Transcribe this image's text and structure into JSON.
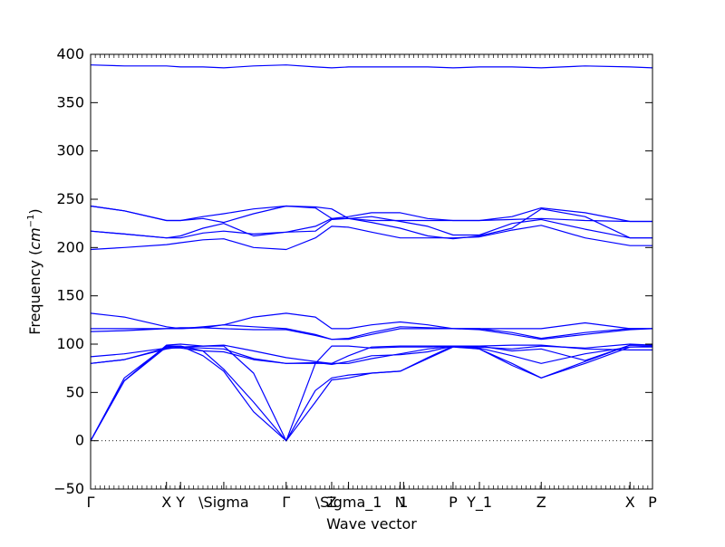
{
  "chart_data": {
    "type": "line",
    "title": "",
    "xlabel": "Wave vector",
    "ylabel": "Frequency ($cm^{-1}$)",
    "ylabel_parts": {
      "main": "Frequency (",
      "unit_base": "cm",
      "unit_exp": "−1",
      "close": ")"
    },
    "ylim": [
      -50,
      400
    ],
    "xlim": [
      0,
      1.0
    ],
    "yticks": [
      -50,
      0,
      50,
      100,
      150,
      200,
      250,
      300,
      350,
      400
    ],
    "ytick_labels": [
      "−50",
      "0",
      "50",
      "100",
      "150",
      "200",
      "250",
      "300",
      "350",
      "400"
    ],
    "high_symmetry_points": [
      {
        "label": "Γ",
        "x": 0.0
      },
      {
        "label": "X",
        "x": 0.135
      },
      {
        "label": "Y",
        "x": 0.16
      },
      {
        "label": "\\Sigma",
        "x": 0.237
      },
      {
        "label": "Γ",
        "x": 0.348
      },
      {
        "label": "Z",
        "x": 0.429
      },
      {
        "label": "\\Sigma_1",
        "x": 0.459
      },
      {
        "label": "N",
        "x": 0.551
      },
      {
        "label": "1",
        "x": 0.557
      },
      {
        "label": "P",
        "x": 0.645
      },
      {
        "label": "Y_1",
        "x": 0.692
      },
      {
        "label": "Z",
        "x": 0.802
      },
      {
        "label": "X",
        "x": 0.96
      },
      {
        "label": "P",
        "x": 1.0
      }
    ],
    "zero_line": true,
    "line_color": "#0000ff",
    "series": [
      {
        "x": [
          0,
          0.06,
          0.135,
          0.16,
          0.2,
          0.237,
          0.29,
          0.348,
          0.4,
          0.429,
          0.459,
          0.5,
          0.551,
          0.6,
          0.645,
          0.692,
          0.75,
          0.802,
          0.88,
          0.96,
          1.0
        ],
        "values": [
          389,
          388,
          388,
          387,
          387,
          386,
          388,
          389,
          387,
          386,
          387,
          387,
          387,
          387,
          386,
          387,
          387,
          386,
          388,
          387,
          386
        ]
      },
      {
        "x": [
          0,
          0.06,
          0.135,
          0.16,
          0.2,
          0.237,
          0.29,
          0.348,
          0.4,
          0.429,
          0.459,
          0.5,
          0.551,
          0.6,
          0.645,
          0.692,
          0.75,
          0.802,
          0.88,
          0.96,
          1.0
        ],
        "values": [
          243,
          238,
          228,
          228,
          232,
          235,
          240,
          243,
          242,
          240,
          230,
          228,
          228,
          228,
          228,
          228,
          229,
          230,
          228,
          227,
          227
        ]
      },
      {
        "x": [
          0,
          0.06,
          0.135,
          0.16,
          0.2,
          0.237,
          0.29,
          0.348,
          0.4,
          0.429,
          0.459,
          0.5,
          0.551,
          0.6,
          0.645,
          0.692,
          0.75,
          0.802,
          0.88,
          0.96,
          1.0
        ],
        "values": [
          243,
          238,
          228,
          228,
          230,
          226,
          235,
          243,
          241,
          230,
          232,
          236,
          236,
          230,
          228,
          228,
          232,
          241,
          236,
          227,
          227
        ]
      },
      {
        "x": [
          0,
          0.06,
          0.135,
          0.16,
          0.2,
          0.237,
          0.29,
          0.348,
          0.4,
          0.429,
          0.459,
          0.5,
          0.551,
          0.6,
          0.645,
          0.692,
          0.75,
          0.802,
          0.88,
          0.96,
          1.0
        ],
        "values": [
          217,
          214,
          210,
          210,
          215,
          217,
          214,
          216,
          222,
          230,
          230,
          232,
          227,
          222,
          213,
          213,
          225,
          229,
          219,
          210,
          210
        ]
      },
      {
        "x": [
          0,
          0.06,
          0.135,
          0.16,
          0.2,
          0.237,
          0.29,
          0.348,
          0.4,
          0.429,
          0.459,
          0.5,
          0.551,
          0.6,
          0.645,
          0.692,
          0.75,
          0.802,
          0.88,
          0.96,
          1.0
        ],
        "values": [
          217,
          214,
          210,
          212,
          220,
          225,
          212,
          216,
          217,
          229,
          230,
          226,
          220,
          212,
          209,
          212,
          220,
          240,
          232,
          210,
          210
        ]
      },
      {
        "x": [
          0,
          0.06,
          0.135,
          0.16,
          0.2,
          0.237,
          0.29,
          0.348,
          0.4,
          0.429,
          0.459,
          0.5,
          0.551,
          0.6,
          0.645,
          0.692,
          0.75,
          0.802,
          0.88,
          0.96,
          1.0
        ],
        "values": [
          198,
          200,
          203,
          205,
          208,
          209,
          200,
          198,
          210,
          222,
          221,
          216,
          210,
          210,
          210,
          211,
          218,
          223,
          210,
          202,
          202
        ]
      },
      {
        "x": [
          0,
          0.06,
          0.135,
          0.16,
          0.2,
          0.237,
          0.29,
          0.348,
          0.4,
          0.429,
          0.459,
          0.5,
          0.551,
          0.6,
          0.645,
          0.692,
          0.75,
          0.802,
          0.88,
          0.96,
          1.0
        ],
        "values": [
          132,
          128,
          118,
          116,
          117,
          120,
          128,
          132,
          128,
          116,
          116,
          120,
          123,
          120,
          116,
          116,
          116,
          116,
          122,
          116,
          116
        ]
      },
      {
        "x": [
          0,
          0.06,
          0.135,
          0.16,
          0.2,
          0.237,
          0.29,
          0.348,
          0.4,
          0.429,
          0.459,
          0.5,
          0.551,
          0.6,
          0.645,
          0.692,
          0.75,
          0.802,
          0.88,
          0.96,
          1.0
        ],
        "values": [
          116,
          116,
          116,
          116,
          118,
          120,
          118,
          116,
          110,
          105,
          106,
          112,
          118,
          117,
          116,
          116,
          112,
          106,
          112,
          116,
          116
        ]
      },
      {
        "x": [
          0,
          0.06,
          0.135,
          0.16,
          0.2,
          0.237,
          0.29,
          0.348,
          0.4,
          0.429,
          0.459,
          0.5,
          0.551,
          0.6,
          0.645,
          0.692,
          0.75,
          0.802,
          0.88,
          0.96,
          1.0
        ],
        "values": [
          113,
          114,
          116,
          117,
          117,
          116,
          115,
          115,
          109,
          105,
          105,
          110,
          116,
          116,
          116,
          115,
          110,
          105,
          110,
          115,
          116
        ]
      },
      {
        "x": [
          0,
          0.06,
          0.135,
          0.16,
          0.2,
          0.237,
          0.29,
          0.348,
          0.4,
          0.429,
          0.459,
          0.5,
          0.551,
          0.6,
          0.645,
          0.692,
          0.75,
          0.802,
          0.88,
          0.96,
          1.0
        ],
        "values": [
          87,
          90,
          96,
          97,
          98,
          99,
          93,
          86,
          82,
          80,
          88,
          97,
          98,
          98,
          98,
          98,
          99,
          99,
          95,
          94,
          94
        ]
      },
      {
        "x": [
          0,
          0.06,
          0.135,
          0.16,
          0.2,
          0.237,
          0.29,
          0.348,
          0.4,
          0.429,
          0.459,
          0.5,
          0.551,
          0.6,
          0.645,
          0.692,
          0.75,
          0.802,
          0.88,
          0.96,
          1.0
        ],
        "values": [
          80,
          84,
          95,
          97,
          96,
          95,
          85,
          80,
          81,
          79,
          82,
          88,
          89,
          92,
          98,
          98,
          93,
          95,
          83,
          99,
          99
        ]
      },
      {
        "x": [
          0,
          0.06,
          0.135,
          0.16,
          0.2,
          0.237,
          0.29,
          0.348,
          0.4,
          0.429,
          0.459,
          0.5,
          0.551,
          0.6,
          0.645,
          0.692,
          0.75,
          0.802,
          0.88,
          0.96,
          1.0
        ],
        "values": [
          80,
          84,
          96,
          96,
          93,
          92,
          84,
          80,
          80,
          80,
          80,
          85,
          90,
          95,
          98,
          96,
          88,
          80,
          90,
          97,
          98
        ]
      },
      {
        "x": [
          0,
          0.06,
          0.135,
          0.16,
          0.2,
          0.237,
          0.29,
          0.348,
          0.4,
          0.429,
          0.459,
          0.5,
          0.551,
          0.6,
          0.645,
          0.692,
          0.75,
          0.802,
          0.88,
          0.96,
          1.0
        ],
        "values": [
          0,
          65,
          98,
          98,
          93,
          74,
          40,
          0,
          40,
          63,
          65,
          70,
          72,
          85,
          97,
          95,
          80,
          65,
          80,
          97,
          97
        ]
      },
      {
        "x": [
          0,
          0.06,
          0.135,
          0.16,
          0.2,
          0.237,
          0.29,
          0.348,
          0.4,
          0.429,
          0.459,
          0.5,
          0.551,
          0.6,
          0.645,
          0.692,
          0.75,
          0.802,
          0.88,
          0.96,
          1.0
        ],
        "values": [
          0,
          62,
          97,
          98,
          88,
          72,
          30,
          0,
          52,
          65,
          68,
          70,
          72,
          86,
          98,
          95,
          78,
          65,
          82,
          99,
          99
        ]
      },
      {
        "x": [
          0,
          0.06,
          0.135,
          0.16,
          0.2,
          0.237,
          0.29,
          0.348,
          0.4,
          0.429,
          0.459,
          0.5,
          0.551,
          0.6,
          0.645,
          0.692,
          0.75,
          0.802,
          0.88,
          0.96,
          1.0
        ],
        "values": [
          0,
          62,
          99,
          100,
          98,
          98,
          70,
          0,
          80,
          98,
          98,
          96,
          97,
          97,
          98,
          97,
          95,
          98,
          96,
          100,
          99
        ]
      }
    ]
  }
}
